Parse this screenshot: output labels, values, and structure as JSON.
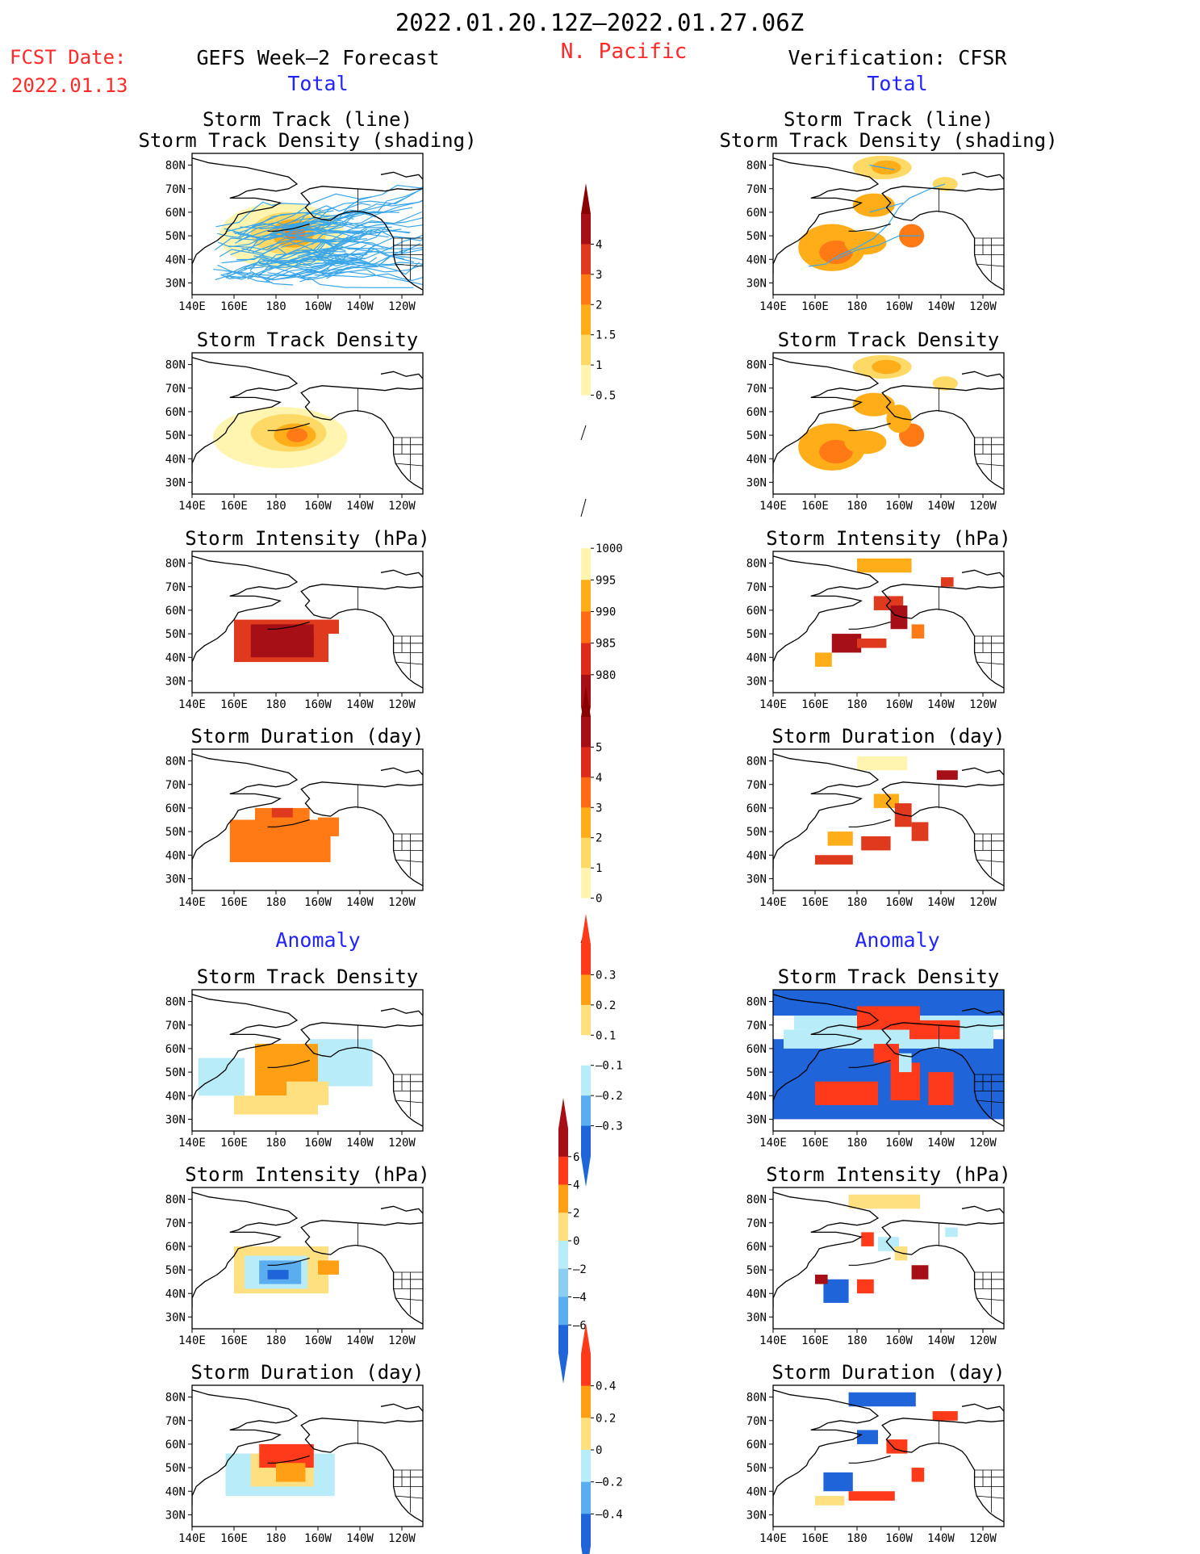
{
  "header": {
    "period": "2022.01.20.12Z–2022.01.27.06Z",
    "region": "N. Pacific",
    "fcst_label": "FCST Date:",
    "fcst_date": "2022.01.13",
    "left_title": "GEFS Week–2 Forecast",
    "right_title": "Verification: CFSR",
    "total_label": "Total",
    "anomaly_label": "Anomaly"
  },
  "colors": {
    "title": "#000000",
    "accent_red": "#ff2a2a",
    "accent_blue": "#2323ff",
    "track_line": "#3aa6e8",
    "coast": "#000000"
  },
  "map_axes": {
    "x_ticks": [
      "140E",
      "160E",
      "180",
      "160W",
      "140W",
      "120W"
    ],
    "y_ticks": [
      "80N",
      "70N",
      "60N",
      "50N",
      "40N",
      "30N"
    ],
    "lon_range": [
      140,
      250
    ],
    "lat_range": [
      25,
      85
    ]
  },
  "panel_titles": {
    "track": [
      "Storm Track (line)",
      "Storm Track Density (shading)"
    ],
    "density": "Storm Track Density",
    "intensity": "Storm Intensity (hPa)",
    "duration": "Storm Duration (day)"
  },
  "colorbars": [
    {
      "id": "density",
      "labels": [
        "4",
        "3",
        "2",
        "1.5",
        "1",
        "0.5"
      ],
      "colors": [
        "#a50f15",
        "#e03a1e",
        "#ff7a14",
        "#ffae1a",
        "#ffd966",
        "#fff5b0",
        "#ffffff"
      ],
      "arrow_top": "#8a0000",
      "arrow_bottom": "open"
    },
    {
      "id": "intensity",
      "labels": [
        "1000",
        "995",
        "990",
        "985",
        "980"
      ],
      "colors": [
        "#ffffff",
        "#fff5b0",
        "#ffae1a",
        "#ff6a14",
        "#dd2a1a",
        "#a50f15"
      ],
      "arrow_top": "open",
      "arrow_bottom": "#8a0000"
    },
    {
      "id": "duration",
      "labels": [
        "5",
        "4",
        "3",
        "2",
        "1",
        "0"
      ],
      "colors": [
        "#a50f15",
        "#dd2a1a",
        "#ff6a14",
        "#ffae1a",
        "#ffd966",
        "#fff5b0",
        "#ffffff"
      ],
      "arrow_top": "#8a0000",
      "arrow_bottom": "open"
    },
    {
      "id": "anom_density",
      "labels": [
        "0.3",
        "0.2",
        "0.1",
        "–0.1",
        "–0.2",
        "–0.3"
      ],
      "colors": [
        "#ff3a1a",
        "#ffa014",
        "#ffe080",
        "#ffffff",
        "#b8ecf8",
        "#5aaef0",
        "#1f64d8"
      ],
      "arrow_top": "#ff3a1a",
      "arrow_bottom": "#1f64d8"
    },
    {
      "id": "anom_intensity",
      "labels": [
        "6",
        "4",
        "2",
        "0",
        "–2",
        "–4",
        "–6"
      ],
      "colors": [
        "#a50f15",
        "#ff3a1a",
        "#ffa014",
        "#ffe080",
        "#b8ecf8",
        "#8ccdf2",
        "#5aaef0",
        "#1f64d8"
      ],
      "arrow_top": "#a50f15",
      "arrow_bottom": "#1f64d8"
    },
    {
      "id": "anom_duration",
      "labels": [
        "0.4",
        "0.2",
        "0",
        "–0.2",
        "–0.4"
      ],
      "colors": [
        "#ff3a1a",
        "#ffa014",
        "#ffe080",
        "#b8ecf8",
        "#5aaef0",
        "#1f64d8"
      ],
      "arrow_top": "#ff3a1a",
      "arrow_bottom": "#1f64d8"
    }
  ]
}
